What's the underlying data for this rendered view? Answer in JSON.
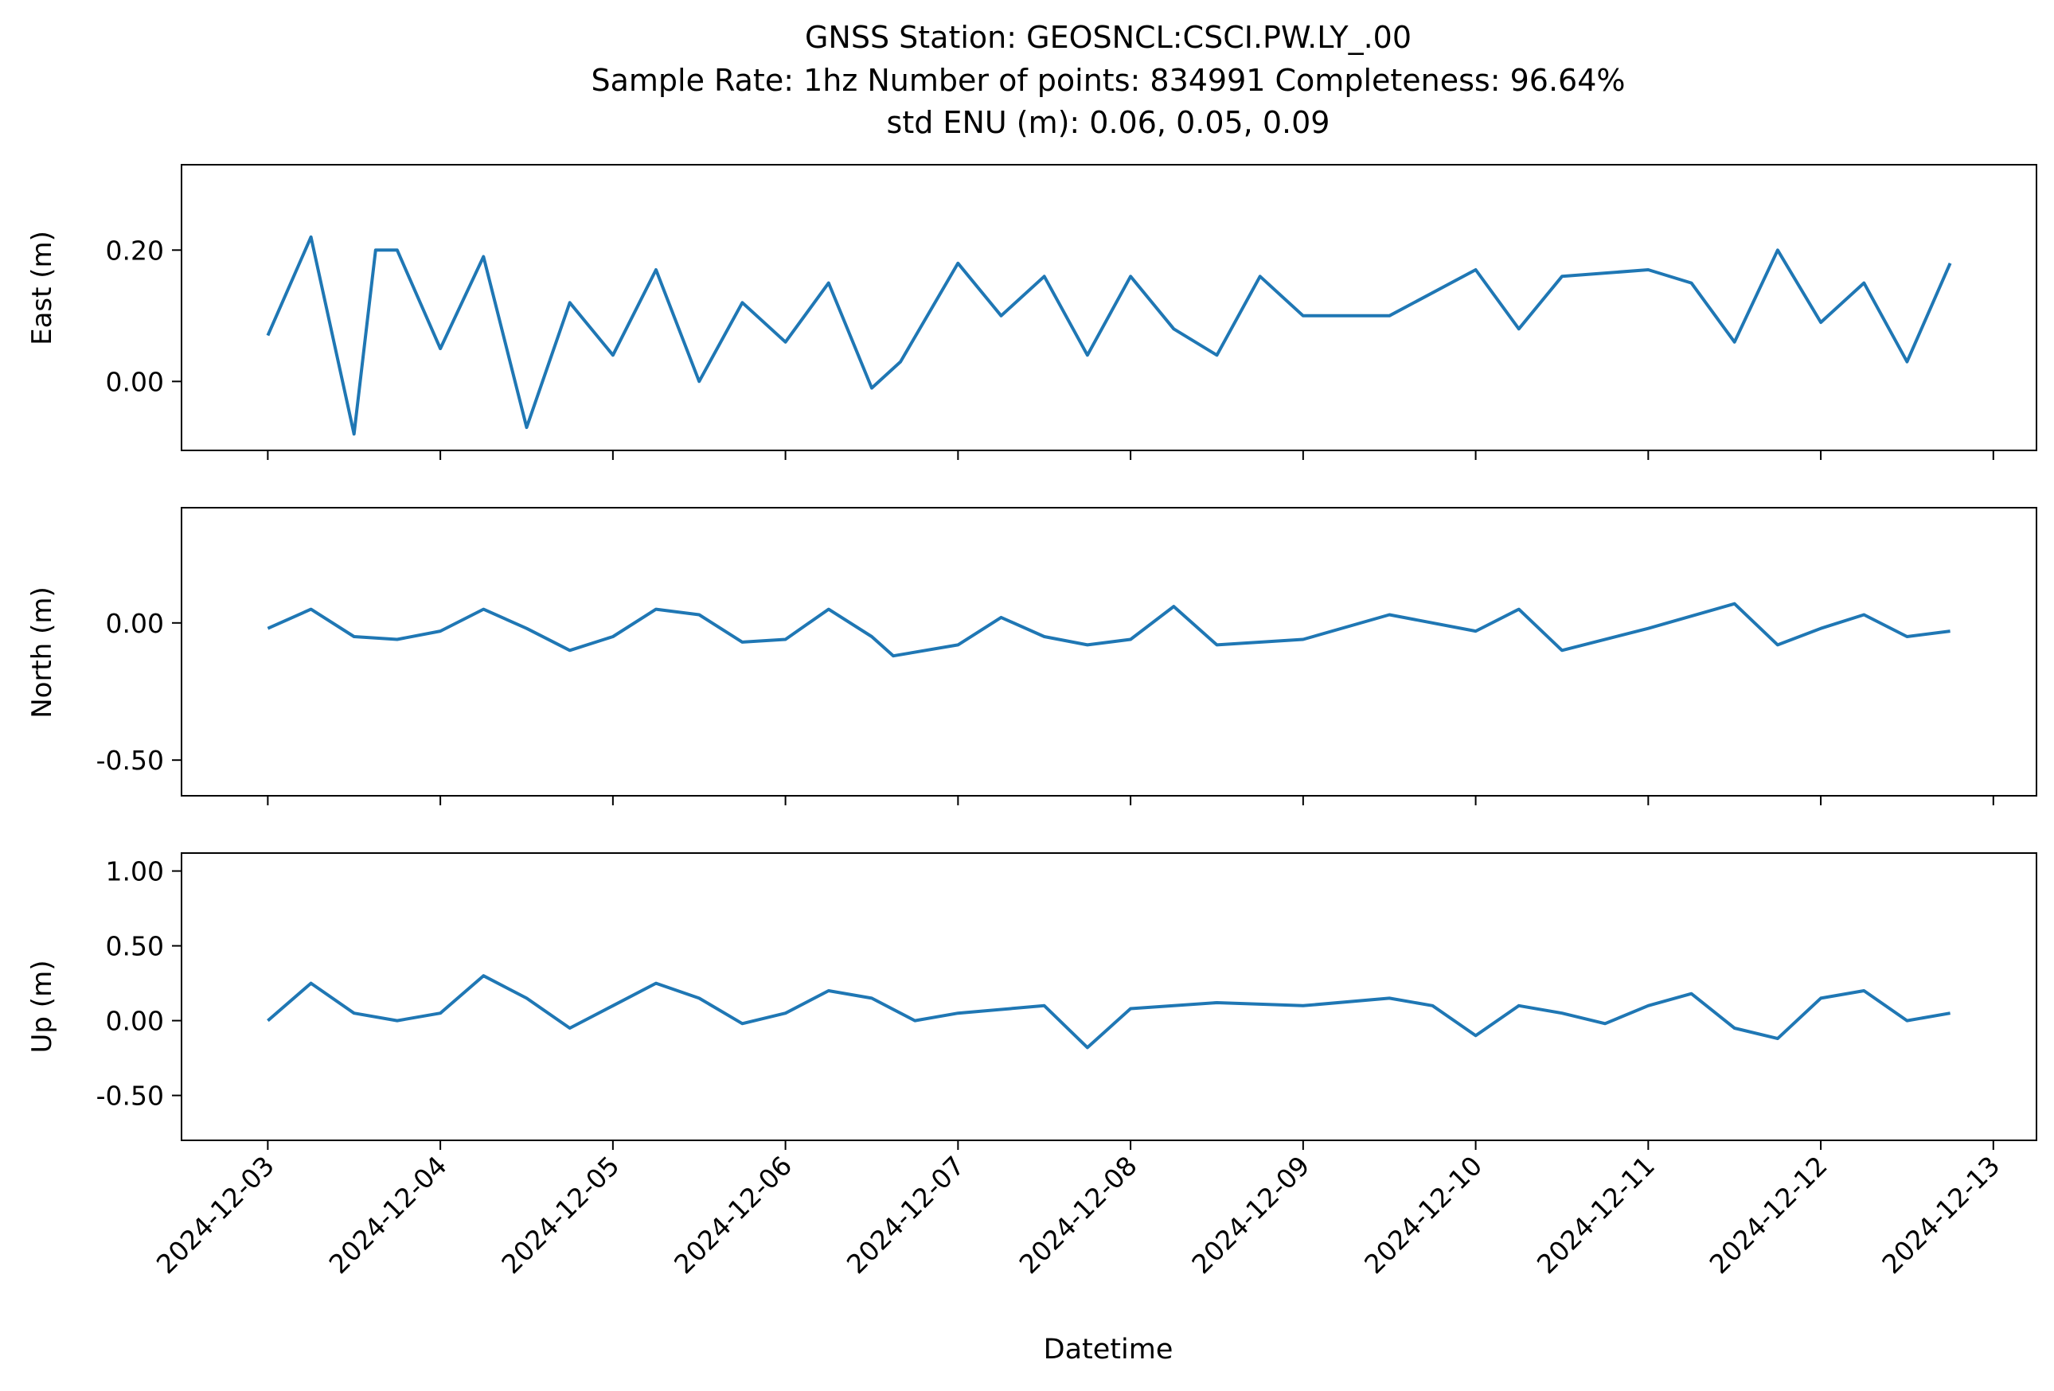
{
  "figure": {
    "title_lines": [
      "GNSS Station: GEOSNCL:CSCI.PW.LY_.00",
      "Sample Rate: 1hz   Number of points: 834991    Completeness:  96.64%",
      "std ENU (m):  0.06, 0.05, 0.09"
    ],
    "xlabel": "Datetime",
    "line_color": "#1f77b4"
  },
  "chart_data": [
    {
      "type": "line",
      "ylabel": "East (m)",
      "ylim": [
        -0.105,
        0.33
      ],
      "yticks": [
        0.0,
        0.2
      ],
      "ytick_labels": [
        "0.00",
        "0.20"
      ],
      "xlim": [
        "2024-12-02T12:00",
        "2024-12-13T06:00"
      ],
      "xtick_labels_visible": false,
      "series": [
        {
          "x": [
            "2024-12-03T00:00",
            "2024-12-03T06:00",
            "2024-12-03T12:00",
            "2024-12-03T15:00",
            "2024-12-03T18:00",
            "2024-12-04T00:00",
            "2024-12-04T06:00",
            "2024-12-04T12:00",
            "2024-12-04T18:00",
            "2024-12-05T00:00",
            "2024-12-05T06:00",
            "2024-12-05T12:00",
            "2024-12-05T18:00",
            "2024-12-06T00:00",
            "2024-12-06T06:00",
            "2024-12-06T12:00",
            "2024-12-06T16:00",
            "2024-12-07T00:00",
            "2024-12-07T06:00",
            "2024-12-07T12:00",
            "2024-12-07T18:00",
            "2024-12-08T00:00",
            "2024-12-08T06:00",
            "2024-12-08T12:00",
            "2024-12-08T18:00",
            "2024-12-09T00:00",
            "2024-12-09T12:00",
            "2024-12-10T00:00",
            "2024-12-10T06:00",
            "2024-12-10T12:00",
            "2024-12-11T00:00",
            "2024-12-11T06:00",
            "2024-12-11T12:00",
            "2024-12-11T18:00",
            "2024-12-12T00:00",
            "2024-12-12T06:00",
            "2024-12-12T12:00",
            "2024-12-12T18:00"
          ],
          "y": [
            0.07,
            0.22,
            -0.08,
            0.2,
            0.2,
            0.05,
            0.19,
            -0.07,
            0.12,
            0.04,
            0.17,
            0.0,
            0.12,
            0.06,
            0.15,
            -0.01,
            0.03,
            0.18,
            0.1,
            0.16,
            0.04,
            0.16,
            0.08,
            0.04,
            0.16,
            0.1,
            0.1,
            0.17,
            0.08,
            0.16,
            0.17,
            0.15,
            0.06,
            0.2,
            0.09,
            0.15,
            0.03,
            0.18
          ]
        }
      ]
    },
    {
      "type": "line",
      "ylabel": "North (m)",
      "ylim": [
        -0.63,
        0.42
      ],
      "yticks": [
        0.0,
        -0.5
      ],
      "ytick_labels": [
        "0.00",
        "-0.50"
      ],
      "xlim": [
        "2024-12-02T12:00",
        "2024-12-13T06:00"
      ],
      "xtick_labels_visible": false,
      "series": [
        {
          "x": [
            "2024-12-03T00:00",
            "2024-12-03T06:00",
            "2024-12-03T12:00",
            "2024-12-03T18:00",
            "2024-12-04T00:00",
            "2024-12-04T06:00",
            "2024-12-04T12:00",
            "2024-12-04T18:00",
            "2024-12-05T00:00",
            "2024-12-05T06:00",
            "2024-12-05T12:00",
            "2024-12-05T18:00",
            "2024-12-06T00:00",
            "2024-12-06T06:00",
            "2024-12-06T12:00",
            "2024-12-06T15:00",
            "2024-12-07T00:00",
            "2024-12-07T06:00",
            "2024-12-07T12:00",
            "2024-12-07T18:00",
            "2024-12-08T00:00",
            "2024-12-08T06:00",
            "2024-12-08T12:00",
            "2024-12-09T00:00",
            "2024-12-09T12:00",
            "2024-12-10T00:00",
            "2024-12-10T06:00",
            "2024-12-10T12:00",
            "2024-12-11T00:00",
            "2024-12-11T12:00",
            "2024-12-11T18:00",
            "2024-12-12T00:00",
            "2024-12-12T06:00",
            "2024-12-12T12:00",
            "2024-12-12T18:00"
          ],
          "y": [
            -0.02,
            0.05,
            -0.05,
            -0.06,
            -0.03,
            0.05,
            -0.02,
            -0.1,
            -0.05,
            0.05,
            0.03,
            -0.07,
            -0.06,
            0.05,
            -0.05,
            -0.12,
            -0.08,
            0.02,
            -0.05,
            -0.08,
            -0.06,
            0.06,
            -0.08,
            -0.06,
            0.03,
            -0.03,
            0.05,
            -0.1,
            -0.02,
            0.07,
            -0.08,
            -0.02,
            0.03,
            -0.05,
            -0.03
          ]
        }
      ]
    },
    {
      "type": "line",
      "ylabel": "Up (m)",
      "ylim": [
        -0.8,
        1.12
      ],
      "yticks": [
        1.0,
        0.5,
        0.0,
        -0.5
      ],
      "ytick_labels": [
        "1.00",
        "0.50",
        "0.00",
        "-0.50"
      ],
      "xlim": [
        "2024-12-02T12:00",
        "2024-12-13T06:00"
      ],
      "xticks": [
        "2024-12-03",
        "2024-12-04",
        "2024-12-05",
        "2024-12-06",
        "2024-12-07",
        "2024-12-08",
        "2024-12-09",
        "2024-12-10",
        "2024-12-11",
        "2024-12-12",
        "2024-12-13"
      ],
      "xtick_labels": [
        "2024-12-03",
        "2024-12-04",
        "2024-12-05",
        "2024-12-06",
        "2024-12-07",
        "2024-12-08",
        "2024-12-09",
        "2024-12-10",
        "2024-12-11",
        "2024-12-12",
        "2024-12-13"
      ],
      "series": [
        {
          "x": [
            "2024-12-03T00:00",
            "2024-12-03T06:00",
            "2024-12-03T12:00",
            "2024-12-03T18:00",
            "2024-12-04T00:00",
            "2024-12-04T06:00",
            "2024-12-04T12:00",
            "2024-12-04T18:00",
            "2024-12-05T00:00",
            "2024-12-05T06:00",
            "2024-12-05T12:00",
            "2024-12-05T18:00",
            "2024-12-06T00:00",
            "2024-12-06T06:00",
            "2024-12-06T12:00",
            "2024-12-06T18:00",
            "2024-12-07T00:00",
            "2024-12-07T12:00",
            "2024-12-07T18:00",
            "2024-12-08T00:00",
            "2024-12-08T06:00",
            "2024-12-08T12:00",
            "2024-12-09T00:00",
            "2024-12-09T12:00",
            "2024-12-09T18:00",
            "2024-12-10T00:00",
            "2024-12-10T06:00",
            "2024-12-10T12:00",
            "2024-12-10T18:00",
            "2024-12-11T00:00",
            "2024-12-11T06:00",
            "2024-12-11T12:00",
            "2024-12-11T18:00",
            "2024-12-12T00:00",
            "2024-12-12T06:00",
            "2024-12-12T12:00",
            "2024-12-12T18:00"
          ],
          "y": [
            0.0,
            0.25,
            0.05,
            0.0,
            0.05,
            0.3,
            0.15,
            -0.05,
            0.1,
            0.25,
            0.15,
            -0.02,
            0.05,
            0.2,
            0.15,
            0.0,
            0.05,
            0.1,
            -0.18,
            0.08,
            0.1,
            0.12,
            0.1,
            0.15,
            0.1,
            -0.1,
            0.1,
            0.05,
            -0.02,
            0.1,
            0.18,
            -0.05,
            -0.12,
            0.15,
            0.2,
            0.0,
            0.05
          ]
        }
      ]
    }
  ]
}
